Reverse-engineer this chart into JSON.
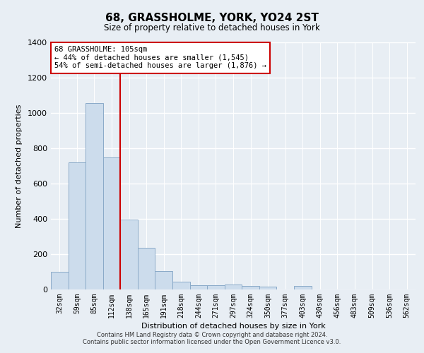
{
  "title": "68, GRASSHOLME, YORK, YO24 2ST",
  "subtitle": "Size of property relative to detached houses in York",
  "xlabel": "Distribution of detached houses by size in York",
  "ylabel": "Number of detached properties",
  "categories": [
    "32sqm",
    "59sqm",
    "85sqm",
    "112sqm",
    "138sqm",
    "165sqm",
    "191sqm",
    "218sqm",
    "244sqm",
    "271sqm",
    "297sqm",
    "324sqm",
    "350sqm",
    "377sqm",
    "403sqm",
    "430sqm",
    "456sqm",
    "483sqm",
    "509sqm",
    "536sqm",
    "562sqm"
  ],
  "values": [
    100,
    720,
    1055,
    750,
    395,
    235,
    105,
    45,
    25,
    25,
    30,
    20,
    15,
    0,
    20,
    0,
    0,
    0,
    0,
    0,
    0
  ],
  "bar_color": "#ccdcec",
  "bar_edge_color": "#8aaac8",
  "vline_x_index": 3,
  "vline_color": "#cc0000",
  "annotation_text": "68 GRASSHOLME: 105sqm\n← 44% of detached houses are smaller (1,545)\n54% of semi-detached houses are larger (1,876) →",
  "annotation_box_color": "#ffffff",
  "annotation_box_edge": "#cc0000",
  "ylim": [
    0,
    1400
  ],
  "yticks": [
    0,
    200,
    400,
    600,
    800,
    1000,
    1200,
    1400
  ],
  "footer_line1": "Contains HM Land Registry data © Crown copyright and database right 2024.",
  "footer_line2": "Contains public sector information licensed under the Open Government Licence v3.0.",
  "bg_color": "#e8eef4",
  "plot_bg_color": "#e8eef4",
  "grid_color": "#ffffff"
}
